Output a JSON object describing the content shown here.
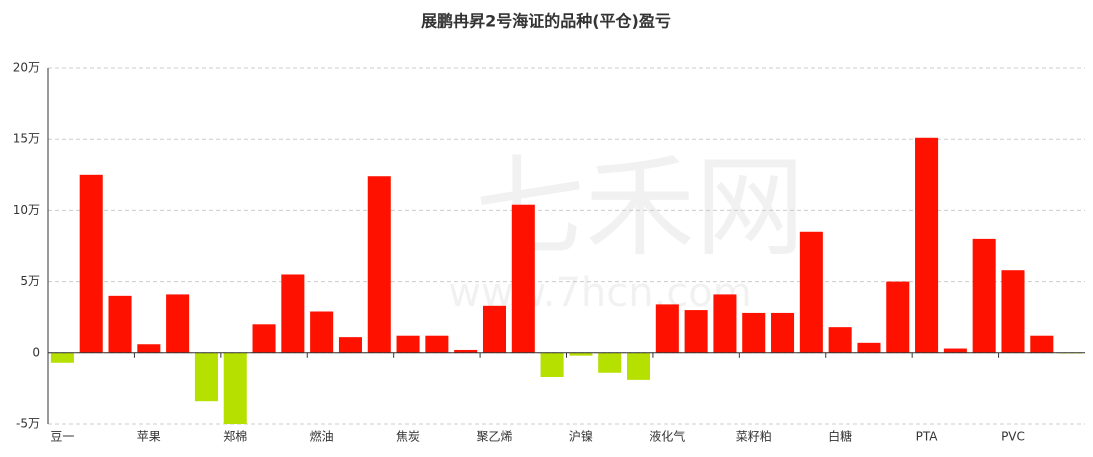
{
  "chart_data": {
    "type": "bar",
    "title": "展鹏冉昇2号海证的品种(平仓)盈亏",
    "watermark": [
      "七禾网",
      "www.7hcn.com"
    ],
    "categories": [
      "豆一",
      null,
      null,
      "苹果",
      null,
      null,
      "郑棉",
      null,
      null,
      "燃油",
      null,
      null,
      "焦炭",
      null,
      null,
      "聚乙烯",
      null,
      null,
      "沪镍",
      null,
      null,
      "液化气",
      null,
      null,
      "菜籽粕",
      null,
      null,
      "白糖",
      null,
      null,
      "PTA",
      null,
      null,
      "PVC",
      null,
      null
    ],
    "values": [
      -0.7,
      12.5,
      4.0,
      0.6,
      4.1,
      -3.4,
      -5.0,
      2.0,
      5.5,
      2.9,
      1.1,
      12.4,
      1.2,
      1.2,
      0.2,
      3.3,
      10.4,
      -1.7,
      -0.2,
      -1.4,
      -1.9,
      3.4,
      3.0,
      4.1,
      2.8,
      2.8,
      8.5,
      1.8,
      0.7,
      5.0,
      15.1,
      0.3,
      8.0,
      5.8,
      1.2,
      -0.05
    ],
    "positive_color": "#ff1100",
    "negative_color": "#b5e000",
    "ylim": [
      -5,
      20
    ],
    "yticks": [
      {
        "value": -5,
        "label": "-5万"
      },
      0,
      {
        "value": 5,
        "label": "5万"
      },
      {
        "value": 10,
        "label": "10万"
      },
      {
        "value": 15,
        "label": "15万"
      },
      {
        "value": 20,
        "label": "20万"
      }
    ],
    "grid": true
  }
}
